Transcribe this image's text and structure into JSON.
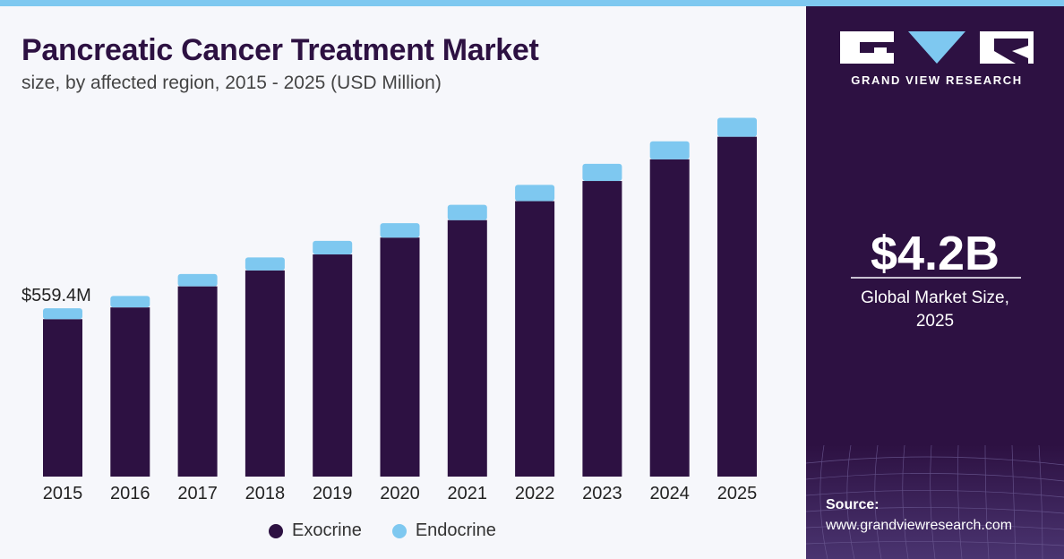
{
  "header": {
    "title": "Pancreatic Cancer Treatment Market",
    "subtitle": "size, by affected region, 2015 - 2025 (USD Million)"
  },
  "colors": {
    "exocrine": "#2d1142",
    "endocrine": "#7ec8f0",
    "panel": "#2d1142",
    "accent": "#7ec8f0"
  },
  "chart_data": {
    "type": "bar",
    "stacked": true,
    "categories": [
      "2015",
      "2016",
      "2017",
      "2018",
      "2019",
      "2020",
      "2021",
      "2022",
      "2023",
      "2024",
      "2025"
    ],
    "series": [
      {
        "name": "Exocrine",
        "values": [
          523,
          562,
          632,
          685,
          738,
          794,
          852,
          915,
          982,
          1054,
          1129
        ]
      },
      {
        "name": "Endocrine",
        "values": [
          36,
          38,
          41,
          43,
          45,
          48,
          51,
          54,
          57,
          60,
          63
        ]
      }
    ],
    "data_labels": [
      {
        "category": "2015",
        "text": "$559.4M"
      }
    ],
    "ylim": [
      0,
      1250
    ],
    "grid": false,
    "legend": "bottom-center"
  },
  "legend": {
    "items": [
      "Exocrine",
      "Endocrine"
    ]
  },
  "panel": {
    "brand": "GRAND VIEW RESEARCH",
    "big_value": "$4.2B",
    "caption_line1": "Global Market Size,",
    "caption_line2": "2025",
    "source_label": "Source:",
    "source_url": "www.grandviewresearch.com"
  }
}
